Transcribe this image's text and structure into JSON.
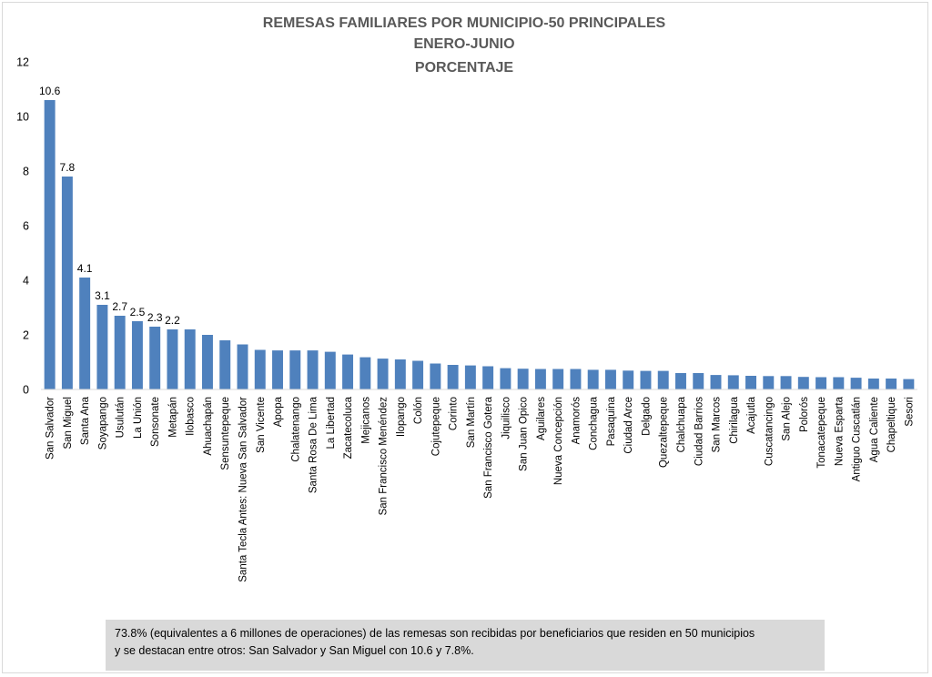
{
  "chart_data": {
    "type": "bar",
    "title_lines": [
      "REMESAS FAMILIARES POR MUNICIPIO-50 PRINCIPALES",
      "ENERO-JUNIO",
      "PORCENTAJE"
    ],
    "xlabel": "",
    "ylabel": "",
    "ylim": [
      0,
      12
    ],
    "yticks": [
      "0",
      "2",
      "4",
      "6",
      "8",
      "10",
      "12"
    ],
    "grid": false,
    "legend": "none",
    "bar_color": "#4f81bd",
    "categories": [
      "San Salvador",
      "San Miguel",
      "Santa Ana",
      "Soyapango",
      "Usulután",
      "La Unión",
      "Sonsonate",
      "Metapán",
      "Ilobasco",
      "Ahuachapán",
      "Sensuntepeque",
      "Santa Tecla Antes: Nueva San Salvador",
      "San Vicente",
      "Apopa",
      "Chalatenango",
      "Santa Rosa De Lima",
      "La Libertad",
      "Zacatecoluca",
      "Mejicanos",
      "San Francisco Menéndez",
      "Ilopango",
      "Colón",
      "Cojutepeque",
      "Corinto",
      "San Martín",
      "San Francisco Gotera",
      "Jiquilisco",
      "San Juan Opico",
      "Aguilares",
      "Nueva Concepción",
      "Anamorós",
      "Conchagua",
      "Pasaquina",
      "Ciudad Arce",
      "Delgado",
      "Quezaltepeque",
      "Chalchuapa",
      "Ciudad Barrios",
      "San Marcos",
      "Chirilagua",
      "Acajutla",
      "Cuscatancingo",
      "San Alejo",
      "Polorós",
      "Tonacatepeque",
      "Nueva Esparta",
      "Antiguo Cuscatlán",
      "Agua Caliente",
      "Chapeltique",
      "Sesori"
    ],
    "values": [
      10.6,
      7.8,
      4.1,
      3.1,
      2.7,
      2.5,
      2.3,
      2.2,
      2.2,
      2.0,
      1.8,
      1.65,
      1.45,
      1.43,
      1.43,
      1.43,
      1.38,
      1.28,
      1.18,
      1.13,
      1.1,
      1.05,
      0.95,
      0.9,
      0.88,
      0.85,
      0.78,
      0.76,
      0.75,
      0.75,
      0.75,
      0.72,
      0.72,
      0.69,
      0.68,
      0.68,
      0.6,
      0.6,
      0.53,
      0.52,
      0.5,
      0.49,
      0.49,
      0.46,
      0.45,
      0.45,
      0.43,
      0.4,
      0.4,
      0.38
    ],
    "data_labels": [
      "10.6",
      "7.8",
      "4.1",
      "3.1",
      "2.7",
      "2.5",
      "2.3",
      "2.2",
      "",
      "",
      "",
      "",
      "",
      "",
      "",
      "",
      "",
      "",
      "",
      "",
      "",
      "",
      "",
      "",
      "",
      "",
      "",
      "",
      "",
      "",
      "",
      "",
      "",
      "",
      "",
      "",
      "",
      "",
      "",
      "",
      "",
      "",
      "",
      "",
      "",
      "",
      "",
      "",
      "",
      ""
    ]
  },
  "note": {
    "line1": "73.8% (equivalentes a 6 millones de operaciones) de las remesas son recibidas por beneficiarios que residen en 50 municipios",
    "line2": "y se destacan entre otros: San Salvador y San Miguel con 10.6 y 7.8%."
  }
}
